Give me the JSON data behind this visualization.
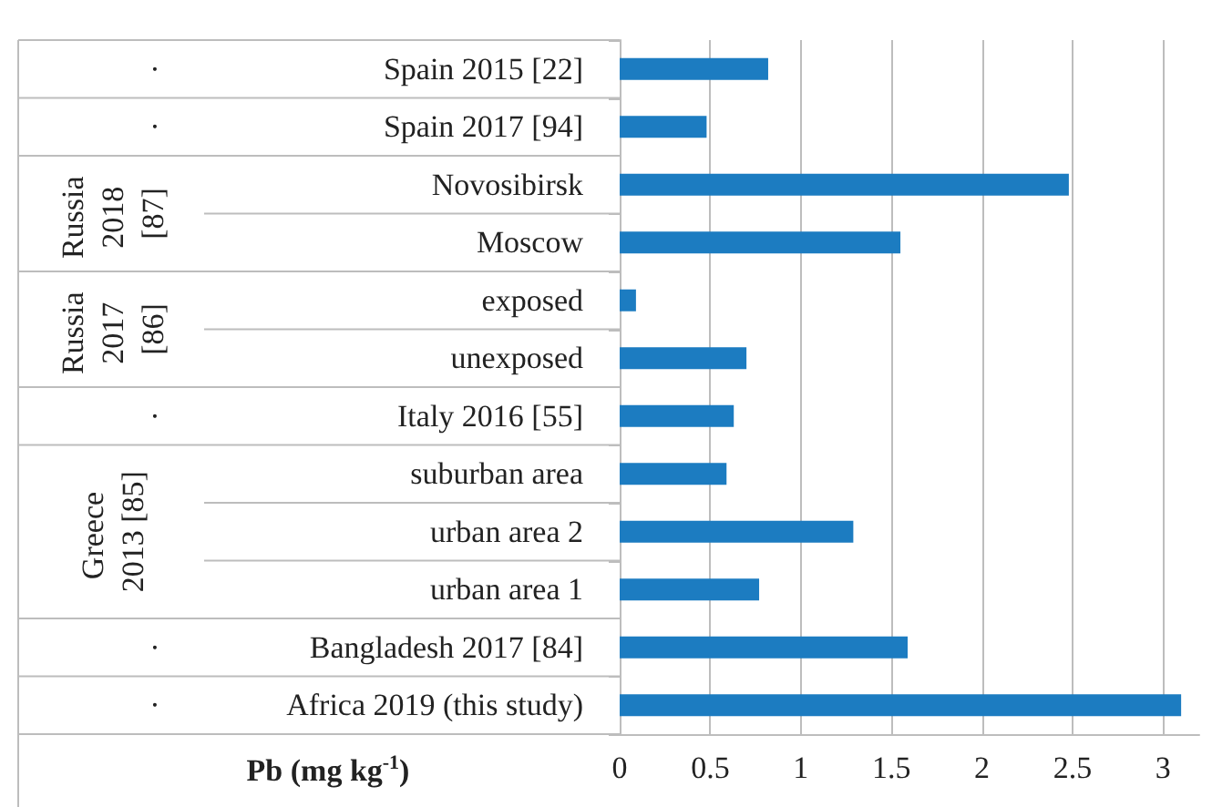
{
  "chart_data": {
    "type": "bar",
    "orientation": "horizontal",
    "xlabel": "Pb (mg kg$^{-1}$)",
    "categories": [
      "Spain 2015 [22]",
      "Spain 2017 [94]",
      "Novosibirsk",
      "Moscow",
      "exposed",
      "unexposed",
      "Italy 2016 [55]",
      "suburban area",
      "urban area 2",
      "urban area 1",
      "Bangladesh 2017 [84]",
      "Africa 2019 (this study)"
    ],
    "values": [
      0.82,
      0.48,
      2.48,
      1.55,
      0.09,
      0.7,
      0.63,
      0.59,
      1.29,
      0.77,
      1.59,
      3.1
    ],
    "color": "#1c7cc1",
    "xlim": [
      0,
      3.2
    ],
    "xticks": [
      0,
      0.5,
      1,
      1.5,
      2,
      2.5,
      3
    ],
    "grid": "x",
    "annotations": [
      "·",
      "·",
      "Russia 2018 [87]",
      "Russia 2017 [86]",
      "·",
      "Greece 2013 [85]",
      "·",
      "·"
    ]
  }
}
